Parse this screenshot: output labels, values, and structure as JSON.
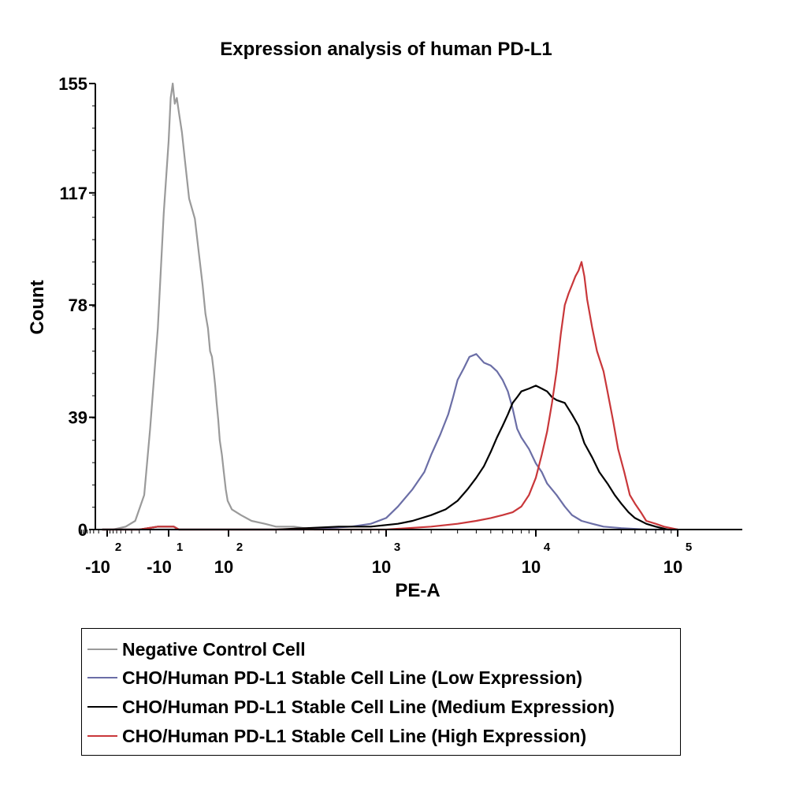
{
  "chart_data": {
    "type": "line",
    "title": "Expression analysis of human PD-L1",
    "xlabel": "PE-A",
    "ylabel": "Count",
    "x_scale": "biexponential (log)",
    "ylim": [
      0,
      155
    ],
    "y_ticks": [
      "0",
      "39",
      "78",
      "117",
      "155"
    ],
    "x_ticks": [
      {
        "value": -100,
        "base": "-10",
        "exp": "2"
      },
      {
        "value": -10,
        "base": "-10",
        "exp": "1"
      },
      {
        "value": 100,
        "base": "10",
        "exp": "2"
      },
      {
        "value": 1000,
        "base": "10",
        "exp": "3"
      },
      {
        "value": 10000,
        "base": "10",
        "exp": "4"
      },
      {
        "value": 100000,
        "base": "10",
        "exp": "5"
      }
    ],
    "grid": false,
    "legend_position": "bottom",
    "series": [
      {
        "name": "Negative Control Cell",
        "color": "#9a9a9a",
        "points": [
          [
            -150,
            0
          ],
          [
            -80,
            0
          ],
          [
            -50,
            1
          ],
          [
            -35,
            3
          ],
          [
            -25,
            12
          ],
          [
            -20,
            35
          ],
          [
            -15,
            70
          ],
          [
            -12,
            110
          ],
          [
            -10,
            135
          ],
          [
            -8,
            150
          ],
          [
            -6,
            155
          ],
          [
            -4,
            148
          ],
          [
            -2,
            150
          ],
          [
            0,
            145
          ],
          [
            3,
            138
          ],
          [
            6,
            128
          ],
          [
            10,
            115
          ],
          [
            14,
            108
          ],
          [
            18,
            95
          ],
          [
            22,
            85
          ],
          [
            26,
            75
          ],
          [
            30,
            70
          ],
          [
            34,
            62
          ],
          [
            38,
            60
          ],
          [
            42,
            55
          ],
          [
            46,
            50
          ],
          [
            50,
            44
          ],
          [
            55,
            38
          ],
          [
            60,
            31
          ],
          [
            68,
            26
          ],
          [
            76,
            20
          ],
          [
            85,
            14
          ],
          [
            95,
            10
          ],
          [
            105,
            7
          ],
          [
            120,
            5
          ],
          [
            140,
            3
          ],
          [
            170,
            2
          ],
          [
            200,
            1
          ],
          [
            260,
            1
          ],
          [
            350,
            0
          ],
          [
            500,
            0
          ]
        ]
      },
      {
        "name": "CHO/Human PD-L1 Stable Cell Line (Low Expression)",
        "color": "#6b6ea6",
        "points": [
          [
            -150,
            0
          ],
          [
            100,
            0
          ],
          [
            300,
            0
          ],
          [
            600,
            1
          ],
          [
            800,
            2
          ],
          [
            1000,
            4
          ],
          [
            1200,
            8
          ],
          [
            1500,
            14
          ],
          [
            1800,
            20
          ],
          [
            2000,
            26
          ],
          [
            2300,
            33
          ],
          [
            2600,
            40
          ],
          [
            2800,
            46
          ],
          [
            3000,
            52
          ],
          [
            3300,
            56
          ],
          [
            3600,
            60
          ],
          [
            4000,
            61
          ],
          [
            4500,
            58
          ],
          [
            5000,
            57
          ],
          [
            5500,
            55
          ],
          [
            6000,
            52
          ],
          [
            6500,
            48
          ],
          [
            7000,
            42
          ],
          [
            7500,
            35
          ],
          [
            8000,
            32
          ],
          [
            9000,
            28
          ],
          [
            10000,
            23
          ],
          [
            11000,
            20
          ],
          [
            12000,
            16
          ],
          [
            14000,
            12
          ],
          [
            16000,
            8
          ],
          [
            18000,
            5
          ],
          [
            21000,
            3
          ],
          [
            25000,
            2
          ],
          [
            30000,
            1
          ],
          [
            40000,
            0.5
          ],
          [
            60000,
            0
          ],
          [
            100000,
            0
          ]
        ]
      },
      {
        "name": "CHO/Human PD-L1 Stable Cell Line (Medium Expression)",
        "color": "#000000",
        "points": [
          [
            -150,
            0
          ],
          [
            -30,
            0
          ],
          [
            -15,
            1
          ],
          [
            -5,
            1
          ],
          [
            0,
            0
          ],
          [
            200,
            0
          ],
          [
            500,
            1
          ],
          [
            800,
            1
          ],
          [
            1200,
            2
          ],
          [
            1500,
            3
          ],
          [
            2000,
            5
          ],
          [
            2500,
            7
          ],
          [
            3000,
            10
          ],
          [
            3500,
            14
          ],
          [
            4000,
            18
          ],
          [
            4500,
            22
          ],
          [
            5000,
            27
          ],
          [
            5500,
            32
          ],
          [
            6000,
            36
          ],
          [
            6500,
            40
          ],
          [
            7000,
            44
          ],
          [
            7500,
            46
          ],
          [
            8000,
            48
          ],
          [
            9000,
            49
          ],
          [
            10000,
            50
          ],
          [
            11000,
            49
          ],
          [
            12000,
            48
          ],
          [
            13000,
            46
          ],
          [
            14000,
            45
          ],
          [
            16000,
            44
          ],
          [
            18000,
            40
          ],
          [
            20000,
            36
          ],
          [
            22000,
            30
          ],
          [
            25000,
            25
          ],
          [
            28000,
            20
          ],
          [
            32000,
            16
          ],
          [
            36000,
            12
          ],
          [
            40000,
            9
          ],
          [
            45000,
            6
          ],
          [
            50000,
            4
          ],
          [
            60000,
            2
          ],
          [
            70000,
            1
          ],
          [
            85000,
            0
          ],
          [
            100000,
            0
          ]
        ]
      },
      {
        "name": "CHO/Human PD-L1 Stable Cell Line (High Expression)",
        "color": "#c9373a",
        "points": [
          [
            -150,
            0
          ],
          [
            -30,
            0
          ],
          [
            -15,
            1
          ],
          [
            -5,
            1
          ],
          [
            0,
            0
          ],
          [
            500,
            0
          ],
          [
            1000,
            0
          ],
          [
            2000,
            1
          ],
          [
            3000,
            2
          ],
          [
            4000,
            3
          ],
          [
            5000,
            4
          ],
          [
            6000,
            5
          ],
          [
            7000,
            6
          ],
          [
            8000,
            8
          ],
          [
            9000,
            12
          ],
          [
            10000,
            18
          ],
          [
            11000,
            26
          ],
          [
            12000,
            34
          ],
          [
            13000,
            44
          ],
          [
            14000,
            55
          ],
          [
            15000,
            68
          ],
          [
            16000,
            78
          ],
          [
            17000,
            82
          ],
          [
            18000,
            85
          ],
          [
            19000,
            88
          ],
          [
            20000,
            90
          ],
          [
            21000,
            93
          ],
          [
            22000,
            88
          ],
          [
            23000,
            80
          ],
          [
            25000,
            70
          ],
          [
            27000,
            62
          ],
          [
            30000,
            55
          ],
          [
            32000,
            48
          ],
          [
            35000,
            38
          ],
          [
            38000,
            28
          ],
          [
            42000,
            20
          ],
          [
            46000,
            12
          ],
          [
            50000,
            9
          ],
          [
            55000,
            6
          ],
          [
            60000,
            3
          ],
          [
            70000,
            2
          ],
          [
            80000,
            1
          ],
          [
            100000,
            0
          ]
        ]
      }
    ]
  }
}
